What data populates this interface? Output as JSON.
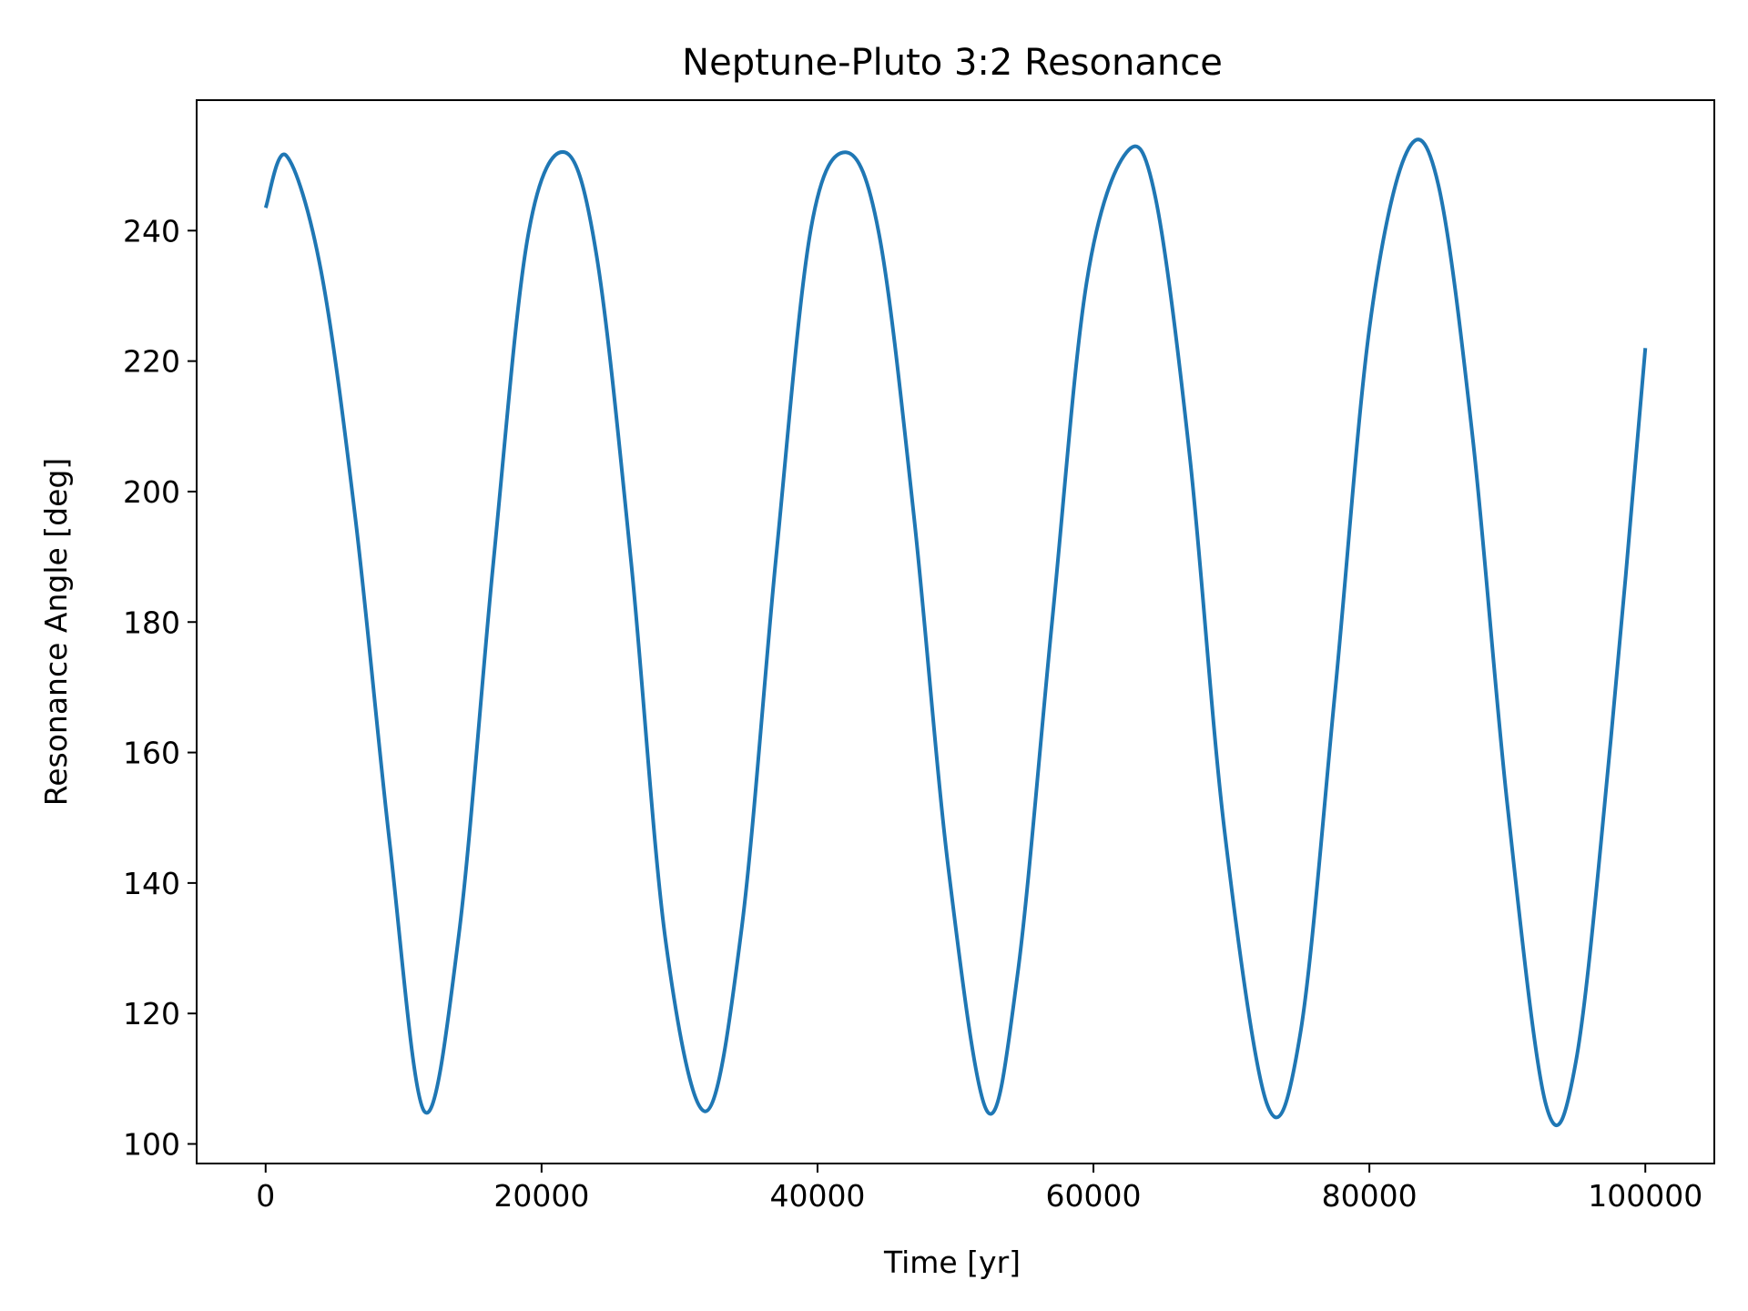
{
  "chart_data": {
    "type": "line",
    "title": "Neptune-Pluto 3:2 Resonance",
    "xlabel": "Time [yr]",
    "ylabel": "Resonance Angle [deg]",
    "xlim": [
      -5000,
      105000
    ],
    "ylim": [
      97,
      260
    ],
    "xticks": [
      0,
      20000,
      40000,
      60000,
      80000,
      100000
    ],
    "xtick_labels": [
      "0",
      "20000",
      "40000",
      "60000",
      "80000",
      "100000"
    ],
    "yticks": [
      100,
      120,
      140,
      160,
      180,
      200,
      220,
      240
    ],
    "ytick_labels": [
      "100",
      "120",
      "140",
      "160",
      "180",
      "200",
      "220",
      "240"
    ],
    "grid": false,
    "legend": "none",
    "line_color": "#1f77b4",
    "series": [
      {
        "x": [
          0,
          1500,
          4000,
          6500,
          9000,
          11500,
          14000,
          16500,
          19000,
          21700,
          24000,
          26500,
          29000,
          31900,
          34500,
          37000,
          39500,
          42100,
          44500,
          47000,
          49500,
          52300,
          54500,
          57000,
          59500,
          62400,
          64500,
          67000,
          69500,
          72600,
          75000,
          77500,
          80000,
          82700,
          85000,
          87500,
          90000,
          92800,
          95000,
          97500,
          100000
        ],
        "y": [
          243.5,
          251.5,
          234,
          196,
          146,
          105,
          132,
          189,
          239,
          252,
          236,
          189,
          131,
          105,
          133,
          190,
          240,
          252,
          239,
          196,
          142,
          105,
          126,
          180,
          232,
          252,
          245,
          205,
          148,
          106,
          117,
          169,
          225,
          252,
          247,
          208,
          152,
          106,
          113,
          162,
          222
        ]
      }
    ]
  }
}
